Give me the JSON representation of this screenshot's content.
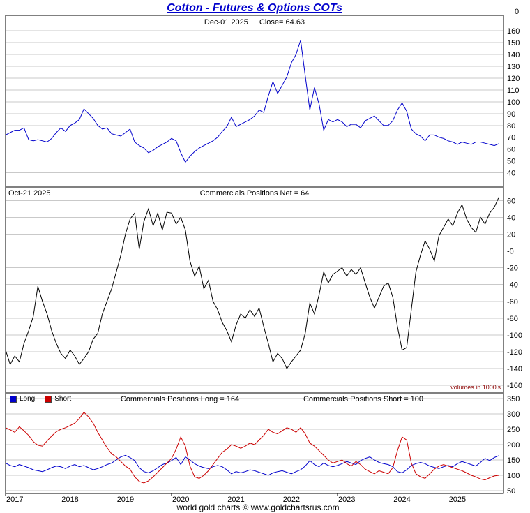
{
  "title": "Cotton - Futures & Options COTs",
  "footer": "world gold charts © www.goldchartsrus.com",
  "top_right_label": "0",
  "colors": {
    "title_blue": "#0000cc",
    "price_blue": "#0000cc",
    "net_black": "#000000",
    "long_blue": "#0000cc",
    "short_red": "#cc0000",
    "note_maroon": "#8b0000",
    "grid": "#c9c9c9",
    "border": "#000000"
  },
  "annotations": {
    "price_date": "Dec-01  2025",
    "price_close": "Close= 64.63",
    "net_date": "Oct-21  2025",
    "net_label": "Commercials Positions Net = 64",
    "long_label": "Commercials Positions Long = 164",
    "short_label": "Commercials Positions Short = 100",
    "volumes_note": "volumes in 1000's"
  },
  "legend": {
    "long": "Long",
    "short": "Short"
  },
  "x_axis": {
    "start": 2017,
    "end": 2026,
    "labels": [
      "2017",
      "2018",
      "2019",
      "2020",
      "2021",
      "2022",
      "2023",
      "2024",
      "2025"
    ]
  },
  "chart_data": [
    {
      "type": "line",
      "name": "cotton-price",
      "title": "Cotton futures price (close = 64.63 on Dec-01 2025)",
      "xlim": [
        2017,
        2026
      ],
      "ylim": [
        28,
        173
      ],
      "grid": true,
      "tick_values": [
        160,
        150,
        140,
        130,
        120,
        110,
        100,
        90,
        80,
        70,
        60,
        50,
        40
      ],
      "tick_labels": [
        "160",
        "150",
        "140",
        "130",
        "120",
        "110",
        "100",
        "90",
        "80",
        "70",
        "60",
        "50",
        "40"
      ],
      "series": [
        {
          "name": "Price",
          "color": "#0000cc",
          "x_start": 2017.0,
          "x_step": 0.0833333,
          "values": [
            72,
            74,
            76,
            76,
            78,
            68,
            67,
            68,
            67,
            66,
            69,
            74,
            78,
            75,
            80,
            82,
            85,
            94,
            90,
            86,
            80,
            77,
            78,
            73,
            72,
            71,
            74,
            77,
            66,
            63,
            61,
            57,
            59,
            62,
            64,
            66,
            69,
            67,
            57,
            49,
            54,
            58,
            61,
            63,
            65,
            67,
            70,
            75,
            79,
            87,
            79,
            81,
            83,
            85,
            88,
            93,
            91,
            105,
            117,
            107,
            114,
            121,
            133,
            140,
            152,
            122,
            93,
            112,
            98,
            76,
            85,
            83,
            85,
            83,
            79,
            81,
            81,
            78,
            84,
            86,
            88,
            84,
            80,
            80,
            84,
            93,
            99,
            92,
            77,
            73,
            71,
            67,
            72,
            72,
            70,
            69,
            67,
            66,
            64,
            66,
            65,
            64,
            66,
            66,
            65,
            64,
            63,
            64.63
          ]
        }
      ]
    },
    {
      "type": "line",
      "name": "commercials-net",
      "title": "Commercials Positions Net = 64 (Oct-21 2025)",
      "xlim": [
        2017,
        2026
      ],
      "ylim": [
        -169,
        76
      ],
      "grid": true,
      "tick_values": [
        60,
        40,
        20,
        0,
        -20,
        -40,
        -60,
        -80,
        -100,
        -120,
        -140,
        -160
      ],
      "tick_labels": [
        "60",
        "40",
        "20",
        "-0",
        "-20",
        "-40",
        "-60",
        "-80",
        "-100",
        "-120",
        "-140",
        "-160"
      ],
      "series": [
        {
          "name": "Net",
          "color": "#000000",
          "x_start": 2017.0,
          "x_step": 0.0833333,
          "values": [
            -118,
            -135,
            -125,
            -132,
            -110,
            -95,
            -78,
            -42,
            -60,
            -75,
            -95,
            -110,
            -122,
            -128,
            -118,
            -125,
            -135,
            -128,
            -120,
            -105,
            -98,
            -75,
            -60,
            -45,
            -25,
            -5,
            20,
            38,
            45,
            2,
            35,
            50,
            30,
            45,
            25,
            46,
            45,
            32,
            40,
            25,
            -12,
            -30,
            -18,
            -45,
            -35,
            -60,
            -70,
            -85,
            -95,
            -108,
            -88,
            -75,
            -80,
            -70,
            -78,
            -68,
            -90,
            -110,
            -132,
            -122,
            -128,
            -140,
            -132,
            -125,
            -118,
            -98,
            -62,
            -75,
            -52,
            -25,
            -38,
            -28,
            -24,
            -20,
            -30,
            -22,
            -28,
            -20,
            -38,
            -55,
            -68,
            -55,
            -42,
            -38,
            -55,
            -90,
            -118,
            -115,
            -70,
            -25,
            -5,
            12,
            2,
            -12,
            18,
            28,
            38,
            30,
            45,
            55,
            38,
            28,
            22,
            40,
            32,
            45,
            52,
            64
          ]
        }
      ]
    },
    {
      "type": "line",
      "name": "commercials-long-short",
      "title": "Commercials Positions Long = 164 / Short = 100",
      "xlim": [
        2017,
        2026
      ],
      "ylim": [
        41,
        368
      ],
      "grid": true,
      "tick_values": [
        350,
        300,
        250,
        200,
        150,
        100,
        50
      ],
      "tick_labels": [
        "350",
        "300",
        "250",
        "200",
        "150",
        "100",
        "50"
      ],
      "series": [
        {
          "name": "Long",
          "color": "#0000cc",
          "x_start": 2017.0,
          "x_step": 0.0833333,
          "values": [
            140,
            132,
            128,
            135,
            130,
            125,
            118,
            115,
            112,
            118,
            125,
            130,
            128,
            122,
            130,
            135,
            128,
            132,
            125,
            118,
            122,
            128,
            135,
            140,
            150,
            160,
            165,
            158,
            148,
            125,
            112,
            108,
            115,
            125,
            135,
            140,
            148,
            158,
            135,
            160,
            150,
            138,
            130,
            125,
            122,
            128,
            132,
            128,
            118,
            105,
            112,
            108,
            112,
            118,
            115,
            110,
            105,
            100,
            108,
            112,
            115,
            110,
            105,
            112,
            118,
            130,
            148,
            135,
            128,
            140,
            132,
            128,
            132,
            138,
            145,
            140,
            135,
            148,
            155,
            160,
            150,
            142,
            138,
            135,
            128,
            112,
            108,
            118,
            132,
            138,
            142,
            138,
            130,
            126,
            122,
            128,
            132,
            128,
            138,
            145,
            140,
            135,
            130,
            142,
            155,
            148,
            158,
            164
          ]
        },
        {
          "name": "Short",
          "color": "#cc0000",
          "x_start": 2017.0,
          "x_step": 0.0833333,
          "values": [
            255,
            248,
            240,
            258,
            245,
            230,
            210,
            198,
            195,
            212,
            228,
            242,
            250,
            255,
            262,
            270,
            285,
            305,
            290,
            270,
            240,
            215,
            190,
            170,
            160,
            145,
            130,
            120,
            95,
            80,
            75,
            82,
            95,
            110,
            125,
            140,
            155,
            185,
            225,
            195,
            130,
            95,
            90,
            100,
            115,
            135,
            155,
            175,
            185,
            200,
            195,
            188,
            195,
            205,
            200,
            215,
            230,
            250,
            240,
            235,
            245,
            255,
            250,
            240,
            255,
            235,
            205,
            195,
            180,
            165,
            150,
            140,
            145,
            150,
            138,
            130,
            145,
            135,
            120,
            112,
            105,
            115,
            110,
            105,
            125,
            180,
            225,
            215,
            140,
            105,
            95,
            90,
            105,
            120,
            130,
            135,
            130,
            125,
            120,
            115,
            108,
            100,
            95,
            88,
            85,
            92,
            98,
            100
          ]
        }
      ]
    }
  ]
}
